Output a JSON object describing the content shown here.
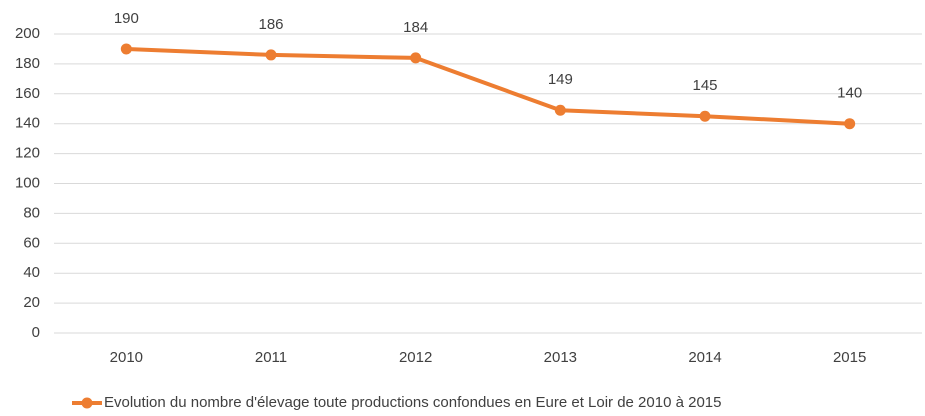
{
  "chart_data": {
    "type": "line",
    "categories": [
      "2010",
      "2011",
      "2012",
      "2013",
      "2014",
      "2015"
    ],
    "series": [
      {
        "name": "Evolution du nombre d'élevage toute productions confondues en Eure et Loir de 2010 à 2015",
        "color": "#ed7d31",
        "values": [
          190,
          186,
          184,
          149,
          145,
          140
        ]
      }
    ],
    "ylim": [
      0,
      200
    ],
    "yticks": [
      0,
      20,
      40,
      60,
      80,
      100,
      120,
      140,
      160,
      180,
      200
    ],
    "grid": true,
    "legend": "bottom"
  }
}
